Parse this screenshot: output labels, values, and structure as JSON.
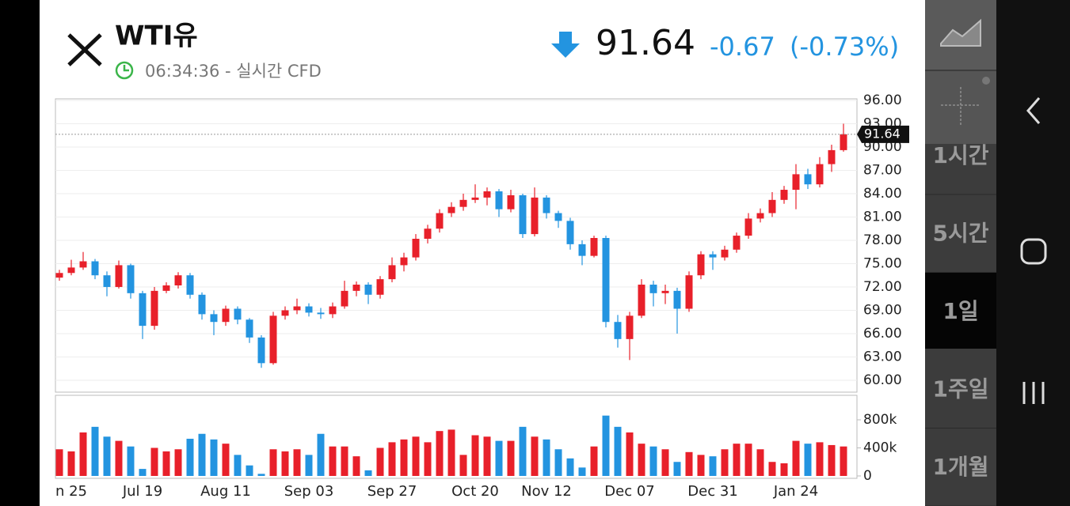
{
  "header": {
    "title": "WTI유",
    "time": "06:34:36 - 실시간 CFD",
    "price": "91.64",
    "change": "-0.67",
    "change_pct": "(-0.73%)"
  },
  "side": {
    "buttons": [
      "1시간",
      "5시간",
      "1일",
      "1주일",
      "1개월"
    ],
    "selected": 2
  },
  "chart_data": {
    "type": "candlestick",
    "categories": [
      null,
      "n 25",
      null,
      null,
      null,
      null,
      null,
      "Jul 19",
      null,
      null,
      null,
      null,
      null,
      null,
      "Aug 11",
      null,
      null,
      null,
      null,
      null,
      null,
      "Sep 03",
      null,
      null,
      null,
      null,
      null,
      null,
      "Sep 27",
      null,
      null,
      null,
      null,
      null,
      null,
      "Oct 20",
      null,
      null,
      null,
      null,
      null,
      "Nov 12",
      null,
      null,
      null,
      null,
      null,
      null,
      "Dec 07",
      null,
      null,
      null,
      null,
      null,
      null,
      "Dec 31",
      null,
      null,
      null,
      null,
      null,
      null,
      "Jan 24",
      null,
      null,
      null,
      null
    ],
    "open": [
      73.2,
      73.8,
      74.5,
      75.3,
      73.5,
      72.0,
      74.8,
      71.2,
      67.0,
      71.5,
      72.2,
      73.5,
      71.0,
      68.5,
      67.5,
      69.2,
      67.8,
      65.5,
      62.2,
      68.3,
      69.0,
      69.5,
      68.7,
      68.5,
      69.5,
      71.5,
      72.3,
      71.0,
      73.0,
      74.8,
      75.8,
      78.2,
      79.5,
      81.5,
      82.3,
      83.2,
      83.5,
      84.3,
      82.0,
      83.8,
      78.8,
      83.5,
      81.5,
      80.5,
      77.5,
      76.0,
      78.3,
      67.5,
      65.3,
      68.3,
      72.3,
      71.2,
      71.5,
      69.2,
      73.5,
      76.2,
      75.8,
      76.8,
      78.6,
      80.8,
      81.5,
      83.2,
      84.5,
      86.5,
      85.2,
      87.8,
      89.6
    ],
    "high": [
      74.2,
      75.5,
      76.5,
      75.6,
      74.0,
      75.4,
      75.0,
      71.5,
      72.0,
      72.6,
      73.9,
      73.8,
      71.3,
      69.0,
      69.6,
      69.5,
      68.0,
      65.8,
      68.8,
      69.5,
      70.5,
      69.9,
      69.3,
      70.0,
      72.8,
      72.7,
      72.6,
      73.4,
      75.8,
      76.4,
      78.8,
      80.0,
      82.0,
      82.9,
      84.0,
      85.2,
      84.8,
      84.6,
      84.5,
      84.0,
      84.8,
      83.8,
      81.8,
      80.9,
      78.0,
      78.6,
      78.6,
      68.4,
      68.8,
      73.0,
      72.8,
      72.3,
      71.9,
      74.0,
      76.6,
      76.6,
      77.3,
      79.0,
      81.5,
      82.1,
      84.2,
      85.0,
      87.8,
      87.2,
      88.7,
      90.3,
      93.0
    ],
    "low": [
      72.8,
      73.5,
      74.2,
      73.0,
      70.8,
      71.8,
      70.5,
      65.3,
      66.5,
      71.2,
      71.8,
      70.5,
      67.8,
      65.8,
      67.0,
      67.2,
      64.8,
      61.6,
      62.0,
      67.8,
      68.5,
      68.2,
      67.9,
      68.0,
      69.2,
      70.8,
      69.8,
      70.5,
      72.6,
      74.0,
      75.4,
      77.6,
      79.0,
      81.0,
      81.8,
      82.8,
      82.5,
      81.0,
      81.6,
      78.3,
      78.5,
      80.8,
      79.6,
      76.8,
      74.8,
      75.8,
      66.8,
      64.2,
      62.6,
      68.0,
      69.5,
      69.8,
      66.0,
      68.8,
      73.0,
      74.2,
      75.4,
      76.4,
      78.2,
      80.3,
      81.0,
      82.7,
      82.0,
      84.6,
      84.8,
      86.8,
      89.4
    ],
    "close": [
      73.8,
      74.5,
      75.3,
      73.5,
      72.0,
      74.8,
      71.2,
      67.0,
      71.5,
      72.2,
      73.5,
      71.0,
      68.5,
      67.5,
      69.2,
      67.8,
      65.5,
      62.2,
      68.3,
      69.0,
      69.5,
      68.7,
      68.5,
      69.5,
      71.5,
      72.3,
      71.0,
      73.0,
      74.8,
      75.8,
      78.2,
      79.5,
      81.5,
      82.3,
      83.2,
      83.5,
      84.3,
      82.0,
      83.8,
      78.8,
      83.5,
      81.5,
      80.5,
      77.5,
      76.0,
      78.3,
      67.5,
      65.3,
      68.3,
      72.3,
      71.2,
      71.5,
      69.2,
      73.5,
      76.2,
      75.8,
      76.8,
      78.6,
      80.8,
      81.5,
      83.2,
      84.5,
      86.5,
      85.2,
      87.8,
      89.6,
      91.64
    ],
    "up_color": "#e8202a",
    "down_color": "#2394e0",
    "ylim": [
      58.47,
      96.2
    ],
    "yticks": [
      {
        "value": 96,
        "label": "96.00"
      },
      {
        "value": 93,
        "label": "93.00"
      },
      {
        "value": 90,
        "label": "90.00"
      },
      {
        "value": 87,
        "label": "87.00"
      },
      {
        "value": 84,
        "label": "84.00"
      },
      {
        "value": 81,
        "label": "81.00"
      },
      {
        "value": 78,
        "label": "78.00"
      },
      {
        "value": 75,
        "label": "75.00"
      },
      {
        "value": 72,
        "label": "72.00"
      },
      {
        "value": 69,
        "label": "69.00"
      },
      {
        "value": 66,
        "label": "66.00"
      },
      {
        "value": 63,
        "label": "63.00"
      },
      {
        "value": 60,
        "label": "60.00"
      }
    ],
    "grid": true,
    "volume": {
      "values": [
        380000,
        350000,
        620000,
        700000,
        560000,
        500000,
        420000,
        100000,
        400000,
        350000,
        380000,
        530000,
        600000,
        520000,
        460000,
        300000,
        150000,
        30000,
        380000,
        350000,
        380000,
        300000,
        600000,
        420000,
        420000,
        280000,
        80000,
        400000,
        480000,
        520000,
        560000,
        480000,
        640000,
        660000,
        300000,
        580000,
        560000,
        500000,
        500000,
        700000,
        560000,
        520000,
        380000,
        250000,
        120000,
        420000,
        860000,
        700000,
        620000,
        460000,
        420000,
        380000,
        200000,
        340000,
        300000,
        280000,
        380000,
        460000,
        460000,
        380000,
        200000,
        180000,
        500000,
        460000,
        480000,
        440000,
        420000
      ],
      "ylim": [
        -34000,
        1149000
      ],
      "yticks": [
        0,
        {
          "value": 400000,
          "label": "400k"
        },
        {
          "value": 800000,
          "label": "800k"
        }
      ]
    }
  }
}
